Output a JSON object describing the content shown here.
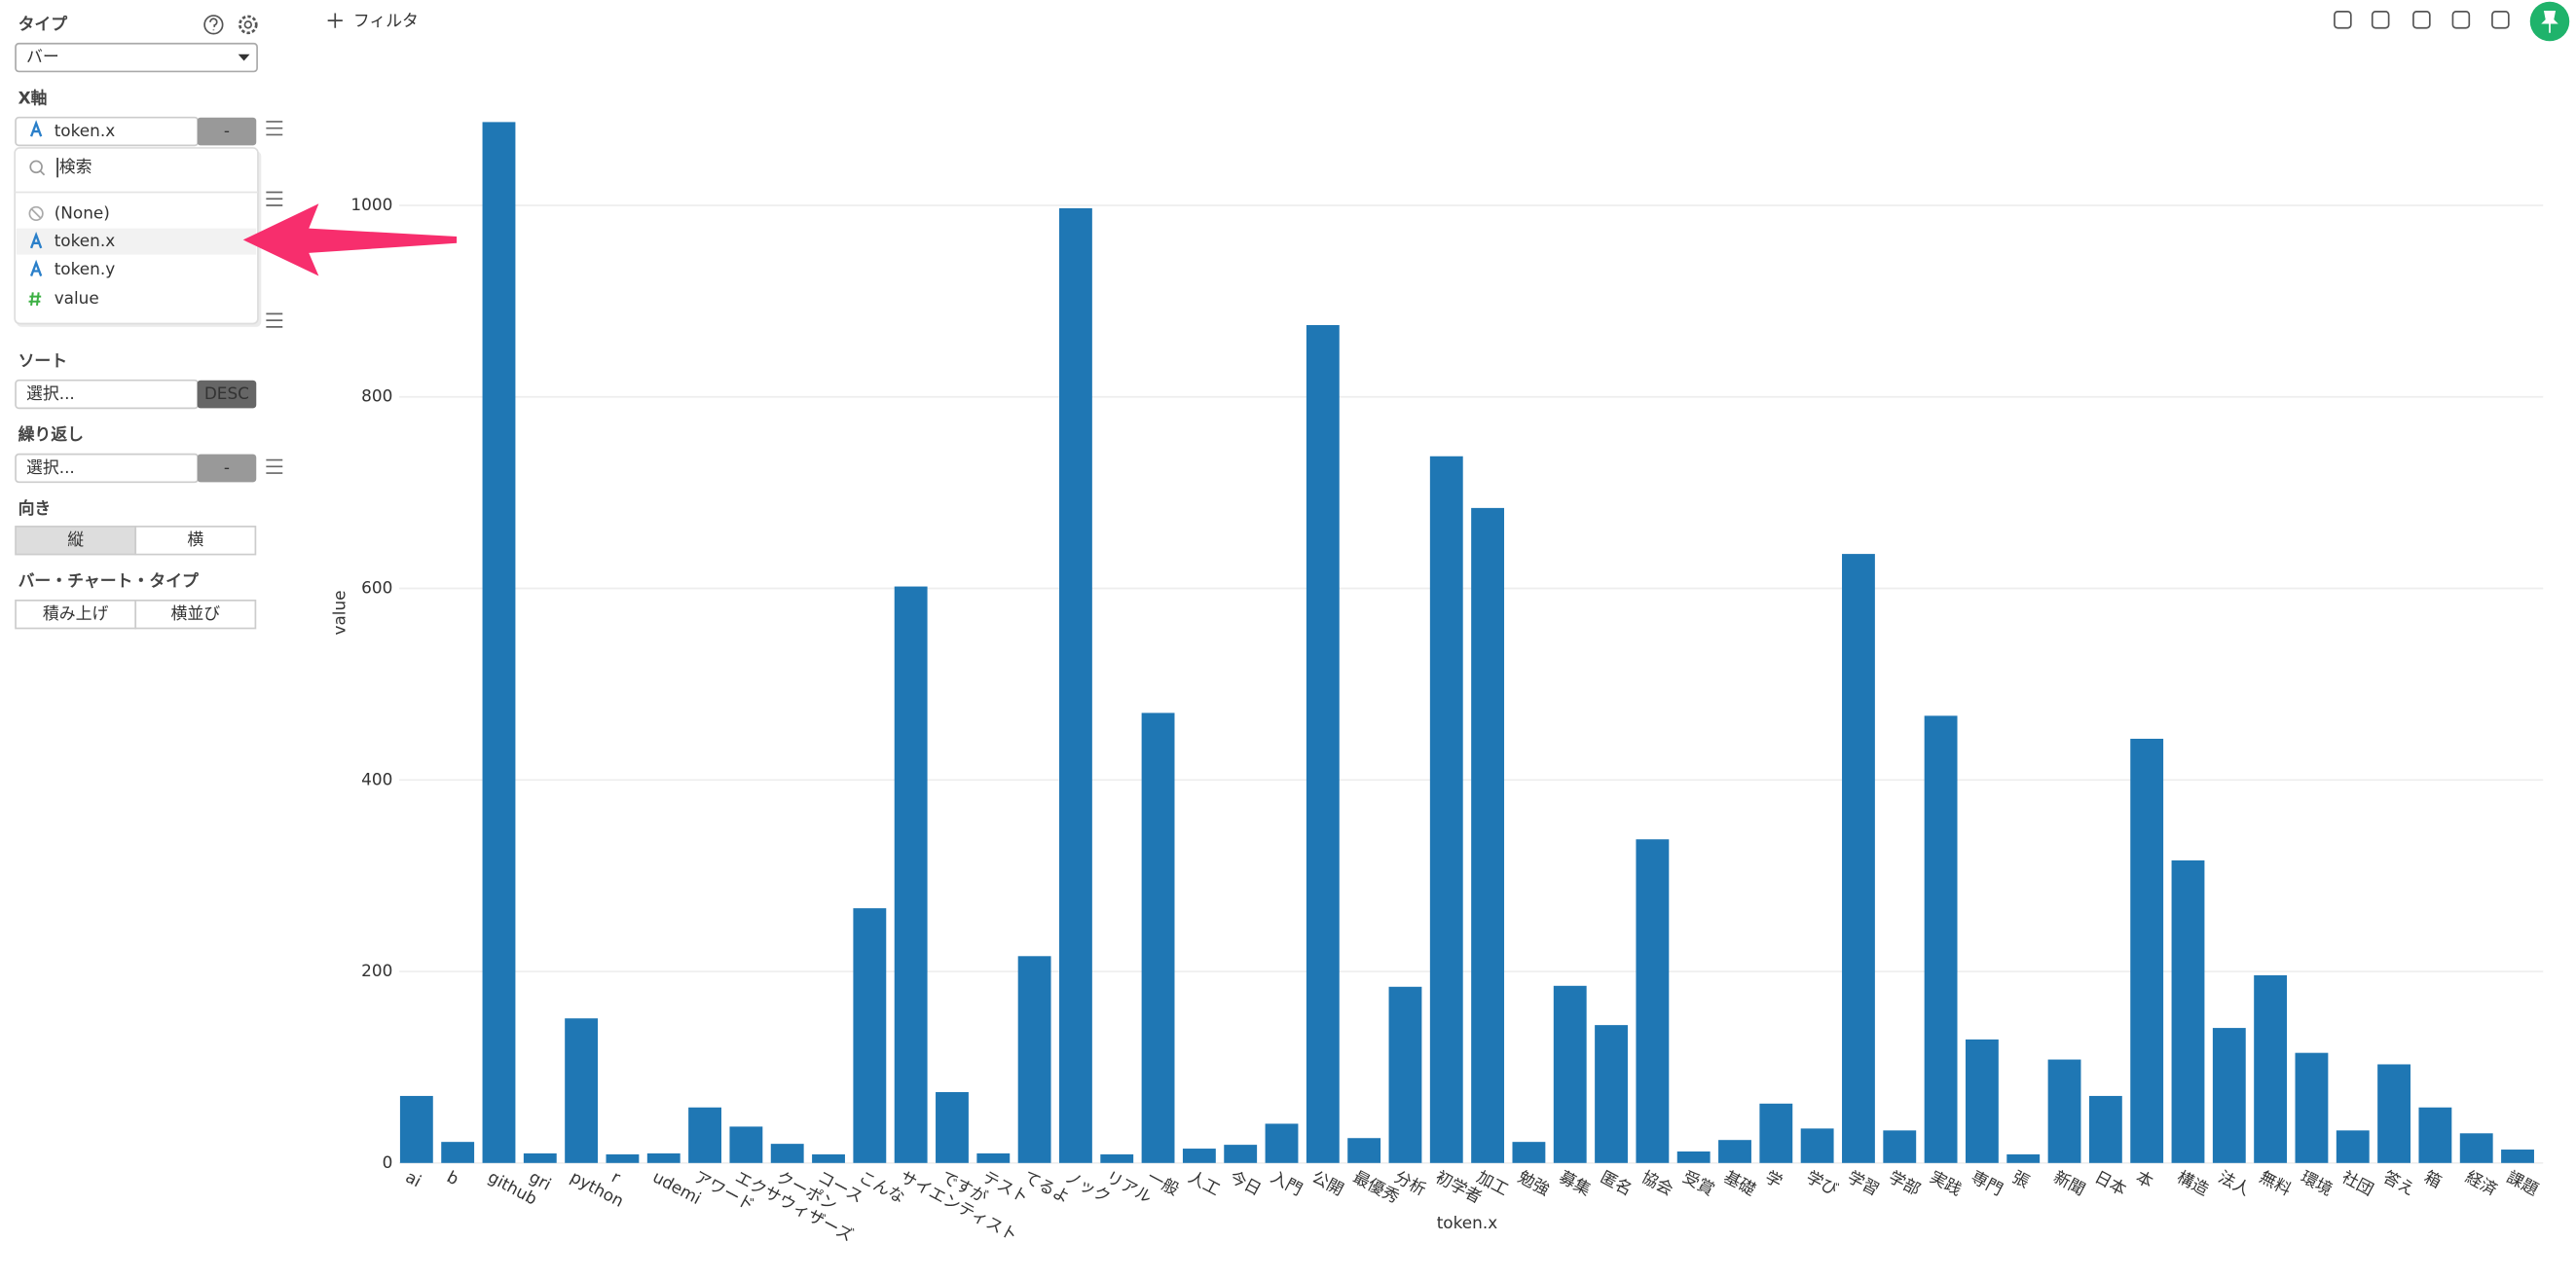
{
  "sidebar": {
    "type_label": "タイプ",
    "type_value": "バー",
    "x_axis_label": "X軸",
    "x_axis_value": "token.x",
    "x_axis_button": "-",
    "dropdown": {
      "search_placeholder": "検索",
      "options": [
        "(None)",
        "token.x",
        "token.y",
        "value"
      ]
    },
    "sort_label": "ソート",
    "sort_value": "選択...",
    "sort_button": "DESC",
    "repeat_label": "繰り返し",
    "repeat_value": "選択...",
    "repeat_button": "-",
    "orientation_label": "向き",
    "orientation_options": [
      "縦",
      "横"
    ],
    "bar_type_label": "バー・チャート・タイプ",
    "bar_type_options": [
      "積み上げ",
      "横並び"
    ]
  },
  "toolbar": {
    "filter": "フィルタ"
  },
  "chart_data": {
    "type": "bar",
    "x_label": "token.x",
    "y_label": "value",
    "color": "#1f77b4",
    "categories": [
      "ai",
      "b",
      "github",
      "gri",
      "python",
      "r",
      "udemi",
      "アワード",
      "エクサウィザーズ",
      "クーポン",
      "コース",
      "こんな",
      "サイエンティスト",
      "ですが",
      "テスト",
      "てるよ",
      "ノック",
      "リアル",
      "一般",
      "人工",
      "今日",
      "入門",
      "公開",
      "最優秀",
      "分析",
      "初学者",
      "加工",
      "勉強",
      "募集",
      "匿名",
      "協会",
      "受賞",
      "基礎",
      "学",
      "学び",
      "学習",
      "学部",
      "実践",
      "専門",
      "張",
      "新聞",
      "日本",
      "本",
      "構造",
      "法人",
      "無料",
      "環境",
      "社団",
      "答え",
      "箱",
      "経済",
      "課題"
    ],
    "values": [
      70,
      22,
      1087,
      10,
      151,
      9,
      10,
      58,
      38,
      20,
      9,
      266,
      602,
      74,
      10,
      216,
      997,
      9,
      470,
      15,
      19,
      41,
      875,
      26,
      184,
      738,
      684,
      22,
      185,
      144,
      338,
      12,
      24,
      62,
      36,
      636,
      34,
      467,
      129,
      9,
      108,
      70,
      443,
      316,
      141,
      196,
      115,
      34,
      103,
      58,
      31,
      14
    ],
    "ylim": [
      0,
      1100
    ],
    "yticks": [
      0,
      200,
      400,
      600,
      800,
      1000
    ],
    "grid": true
  }
}
